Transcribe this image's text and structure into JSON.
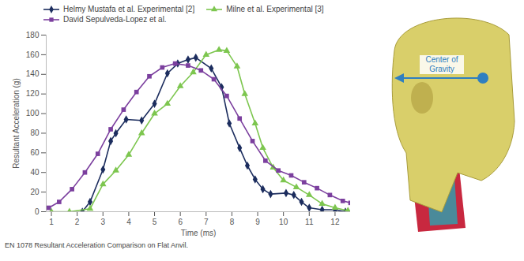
{
  "chart_data": {
    "type": "line",
    "x_label": "Time (ms)",
    "y_label": "Resultant Acceleration (g)",
    "caption": "EN 1078 Resultant Acceleration Comparison on Flat Anvil.",
    "annotations": [
      {
        "text": "Center of Gravity"
      }
    ],
    "xlim": [
      0.8,
      12.6
    ],
    "xticks": [
      1,
      2,
      3,
      4,
      5,
      6,
      7,
      8,
      9,
      10,
      11,
      12
    ],
    "ylim": [
      0,
      180
    ],
    "yticks": [
      0,
      20,
      40,
      60,
      80,
      100,
      120,
      140,
      160,
      180
    ],
    "grid": false,
    "legend": "top",
    "series": [
      {
        "name": "Helmy Mustafa et al. Experimental [2]",
        "color": "#1c2d5e",
        "marker": "diamond",
        "x": [
          2.2,
          2.5,
          3.0,
          3.3,
          3.5,
          3.9,
          4.5,
          5.0,
          5.5,
          5.9,
          6.3,
          6.6,
          7.2,
          7.6,
          7.9,
          8.3,
          8.6,
          8.9,
          9.2,
          9.5,
          10.1,
          10.4,
          10.7,
          11.0,
          11.5,
          12.0,
          12.4
        ],
        "values": [
          0,
          10,
          43,
          72,
          80,
          94,
          93,
          110,
          141,
          151,
          155,
          157,
          146,
          127,
          90,
          65,
          47,
          33,
          23,
          18,
          19,
          17,
          10,
          4,
          2,
          2,
          0
        ]
      },
      {
        "name": "Milne et al. Experimental [3]",
        "color": "#7dc64f",
        "marker": "triangle",
        "x": [
          1.0,
          1.7,
          2.5,
          3.0,
          3.5,
          4.0,
          4.5,
          5.0,
          5.5,
          6.0,
          6.5,
          7.0,
          7.5,
          7.8,
          8.2,
          8.5,
          8.9,
          9.2,
          9.6,
          10.0,
          10.5,
          11.0,
          11.5,
          12.0,
          12.5
        ],
        "values": [
          0,
          0,
          3,
          28,
          42,
          58,
          80,
          100,
          110,
          128,
          142,
          160,
          165,
          164,
          148,
          120,
          90,
          65,
          45,
          32,
          25,
          17,
          8,
          4,
          1
        ]
      },
      {
        "name": "David Sepulveda-Lopez et al.",
        "color": "#7b3f9e",
        "marker": "square",
        "x": [
          0.9,
          1.3,
          1.8,
          2.3,
          2.8,
          3.3,
          3.8,
          4.3,
          4.8,
          5.3,
          5.8,
          6.3,
          6.8,
          7.3,
          7.8,
          8.3,
          8.8,
          9.3,
          9.8,
          10.3,
          10.8,
          11.3,
          11.8,
          12.3,
          12.6
        ],
        "values": [
          4,
          10,
          23,
          40,
          59,
          84,
          104,
          122,
          138,
          147,
          151,
          149,
          144,
          135,
          118,
          95,
          72,
          52,
          42,
          37,
          30,
          24,
          17,
          11,
          9
        ]
      }
    ]
  }
}
